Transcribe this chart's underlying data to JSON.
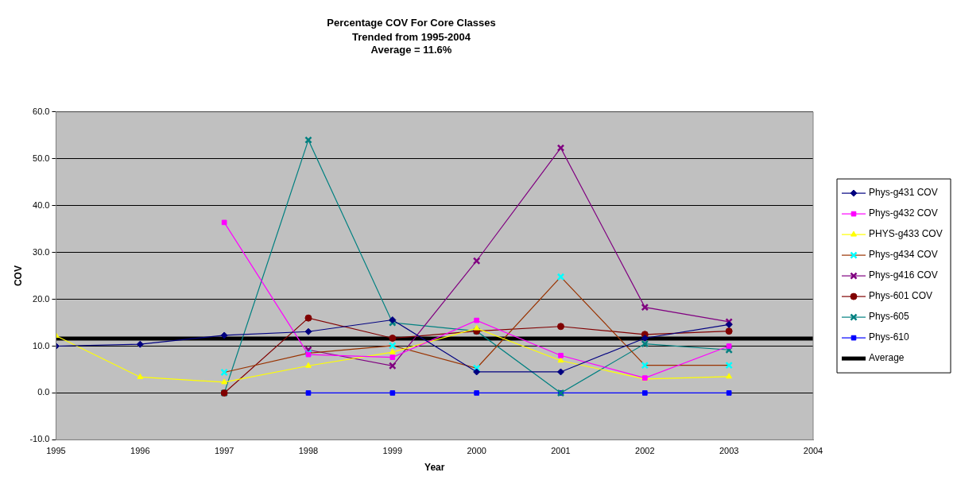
{
  "chart_data": {
    "type": "line",
    "title": "Percentage COV For Core Classes",
    "subtitle": "Trended from 1995-2004\nAverage = 11.6%",
    "xlabel": "Year",
    "ylabel": "COV",
    "xlim": [
      1995,
      2004
    ],
    "xticks": [
      1995,
      1996,
      1997,
      1998,
      1999,
      2000,
      2001,
      2002,
      2003,
      2004
    ],
    "ylim": [
      -10,
      60
    ],
    "yticks": [
      {
        "value": -10,
        "label": "-10.0"
      },
      {
        "value": 0,
        "label": "0.0"
      },
      {
        "value": 10,
        "label": "10.0"
      },
      {
        "value": 20,
        "label": "20.0"
      },
      {
        "value": 30,
        "label": "30.0"
      },
      {
        "value": 40,
        "label": "40.0"
      },
      {
        "value": 50,
        "label": "50.0"
      },
      {
        "value": 60,
        "label": "60.0"
      }
    ],
    "grid": "y",
    "legend": "right",
    "series": [
      {
        "name": "Phys-g431 COV",
        "color": "#000080",
        "marker": "diamond",
        "x": [
          1995,
          1996,
          1997,
          1998,
          1999,
          2000,
          2001,
          2002,
          2003
        ],
        "values": [
          10.0,
          10.4,
          12.3,
          13.1,
          15.6,
          4.5,
          4.5,
          11.7,
          14.6
        ]
      },
      {
        "name": "Phys-g432 COV",
        "color": "#ff00ff",
        "marker": "square",
        "x": [
          1997,
          1998,
          1999,
          2000,
          2001,
          2002,
          2003
        ],
        "values": [
          36.4,
          8.2,
          7.6,
          15.5,
          8.0,
          3.2,
          10.0
        ]
      },
      {
        "name": "PHYS-g433 COV",
        "color": "#ffff00",
        "marker": "triangle",
        "x": [
          1995,
          1996,
          1997,
          1998,
          1999,
          2000,
          2001,
          2002,
          2003
        ],
        "values": [
          12.2,
          3.4,
          2.3,
          5.8,
          8.7,
          13.8,
          6.9,
          3.0,
          3.5
        ]
      },
      {
        "name": "Phys-g434 COV",
        "color": "#993300",
        "colors": [
          "#00ffff",
          "#00ffff",
          "#00ffff",
          "#00ffff",
          "#00ffff",
          "#00ffff",
          "#00ffff"
        ],
        "marker": "cross",
        "x": [
          1997,
          1998,
          1999,
          2000,
          2001,
          2002,
          2003
        ],
        "values": [
          4.4,
          8.5,
          10.1,
          5.3,
          24.8,
          5.9,
          5.9
        ]
      },
      {
        "name": "Phys-g416 COV",
        "color": "#800080",
        "marker": "cross",
        "x": [
          1998,
          1999,
          2000,
          2001,
          2002,
          2003
        ],
        "values": [
          9.2,
          5.8,
          28.2,
          52.3,
          18.3,
          15.2
        ]
      },
      {
        "name": "Phys-601 COV",
        "color": "#800000",
        "marker": "circle",
        "x": [
          1997,
          1998,
          1999,
          2000,
          2001,
          2002,
          2003
        ],
        "values": [
          0,
          16.0,
          11.7,
          13.2,
          14.2,
          12.5,
          13.2
        ]
      },
      {
        "name": "Phys-605",
        "color": "#008080",
        "marker": "cross",
        "x": [
          1997,
          1998,
          1999,
          2000,
          2001,
          2002,
          2003
        ],
        "values": [
          0,
          54.0,
          15.0,
          13.2,
          0,
          10.5,
          9.2
        ]
      },
      {
        "name": "Phys-610",
        "color": "#0000ff",
        "marker": "square",
        "x": [
          1998,
          1999,
          2000,
          2001,
          2002,
          2003
        ],
        "values": [
          0,
          0,
          0,
          0,
          0,
          0
        ]
      }
    ],
    "ref_lines": [
      {
        "axis": "y",
        "value": 11.6,
        "label": "Average",
        "color": "#000000",
        "line_style": "solid"
      }
    ]
  }
}
